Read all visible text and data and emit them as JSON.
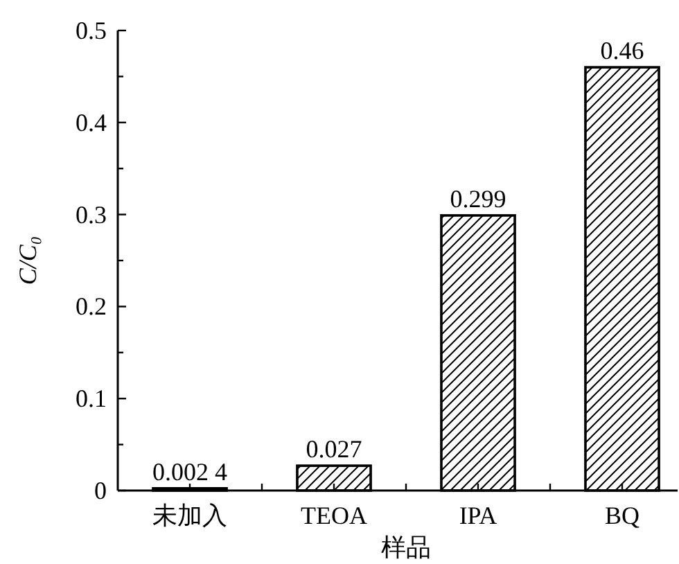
{
  "chart_data": {
    "type": "bar",
    "xlabel": "样品",
    "ylabel": "C/C₀",
    "categories": [
      "未加入",
      "TEOA",
      "IPA",
      "BQ"
    ],
    "values": [
      0.0024,
      0.027,
      0.299,
      0.46
    ],
    "color": "#000000",
    "value_labels": [
      "0.002 4",
      "0.027",
      "0.299",
      "0.46"
    ],
    "ylim": [
      0,
      0.5
    ],
    "yticks": [
      0,
      {
        "value": 0.05,
        "label": null
      },
      0.1,
      {
        "value": 0.15,
        "label": null
      },
      0.2,
      {
        "value": 0.25,
        "label": null
      },
      0.3,
      {
        "value": 0.35,
        "label": null
      },
      0.4,
      {
        "value": 0.45,
        "label": null
      },
      0.5
    ]
  }
}
